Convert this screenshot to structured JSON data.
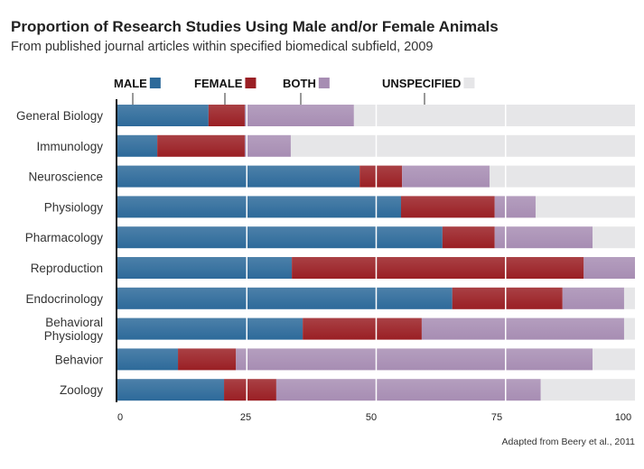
{
  "chart_data": {
    "type": "bar",
    "orientation": "horizontal",
    "stacked": true,
    "title": "Proportion of Research Studies Using Male and/or Female Animals",
    "subtitle": "From published journal articles within specified biomedical subfield, 2009",
    "source": "Adapted from Beery et al., 2011",
    "categories": [
      "General Biology",
      "Immunology",
      "Neuroscience",
      "Physiology",
      "Pharmacology",
      "Reproduction",
      "Endocrinology",
      "Behavioral Physiology",
      "Behavior",
      "Zoology"
    ],
    "series": [
      {
        "name": "MALE",
        "color": "#2d6a9a",
        "values": [
          17.6,
          7.7,
          46.8,
          54.8,
          62.8,
          33.7,
          64.7,
          35.8,
          11.7,
          20.6
        ]
      },
      {
        "name": "FEMALE",
        "color": "#9a1f24",
        "values": [
          7.0,
          16.9,
          8.2,
          18.1,
          10.1,
          56.4,
          21.3,
          23.0,
          11.2,
          10.1
        ]
      },
      {
        "name": "BOTH",
        "color": "#a78db3",
        "values": [
          21.1,
          8.9,
          16.9,
          7.9,
          18.9,
          9.9,
          11.9,
          39.1,
          68.9,
          51.1
        ]
      },
      {
        "name": "UNSPECIFIED",
        "color": "#e6e6e8",
        "values": [
          54.3,
          66.5,
          28.1,
          19.2,
          8.2,
          0,
          2.1,
          2.1,
          8.2,
          18.2
        ]
      }
    ],
    "xticks": [
      0,
      25,
      50,
      75,
      100
    ],
    "xlim": [
      0,
      100
    ],
    "grid": "vertical white lines at 25, 50, 75",
    "legend": "top"
  }
}
